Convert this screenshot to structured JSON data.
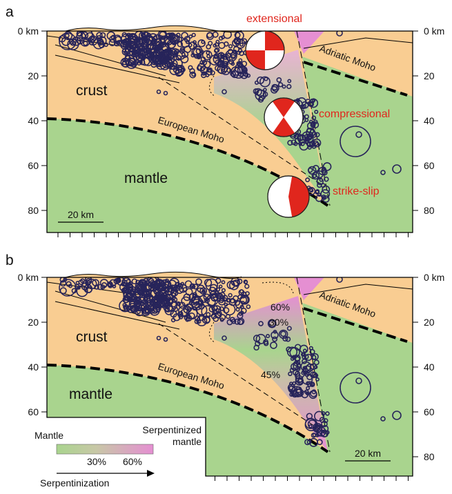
{
  "panels": [
    {
      "label": "a",
      "left_ticks": [
        "0 km",
        "20",
        "40",
        "60",
        "80"
      ],
      "right_ticks": [
        "0 km",
        "20",
        "40",
        "60",
        "80"
      ],
      "annotations": {
        "extensional": "extensional",
        "adriatic_moho": "Adriatic Moho",
        "crust": "crust",
        "compressional": "compressional",
        "european_moho": "European Moho",
        "mantle": "mantle",
        "strike_slip": "strike-slip"
      },
      "scale_bar": "20 km"
    },
    {
      "label": "b",
      "left_ticks": [
        "0 km",
        "20",
        "40",
        "60"
      ],
      "right_ticks": [
        "0 km",
        "20",
        "40",
        "60",
        "80"
      ],
      "annotations": {
        "adriatic_moho": "Adriatic Moho",
        "crust": "crust",
        "european_moho": "European Moho",
        "mantle": "mantle",
        "p60": "60%",
        "p30": "30%",
        "p45": "45%"
      },
      "scale_bar": "20 km",
      "legend": {
        "left": "Mantle",
        "right": [
          "Serpentinized",
          "mantle"
        ],
        "ticks": [
          "30%",
          "60%"
        ],
        "arrow_label": "Serpentinization"
      }
    }
  ]
}
